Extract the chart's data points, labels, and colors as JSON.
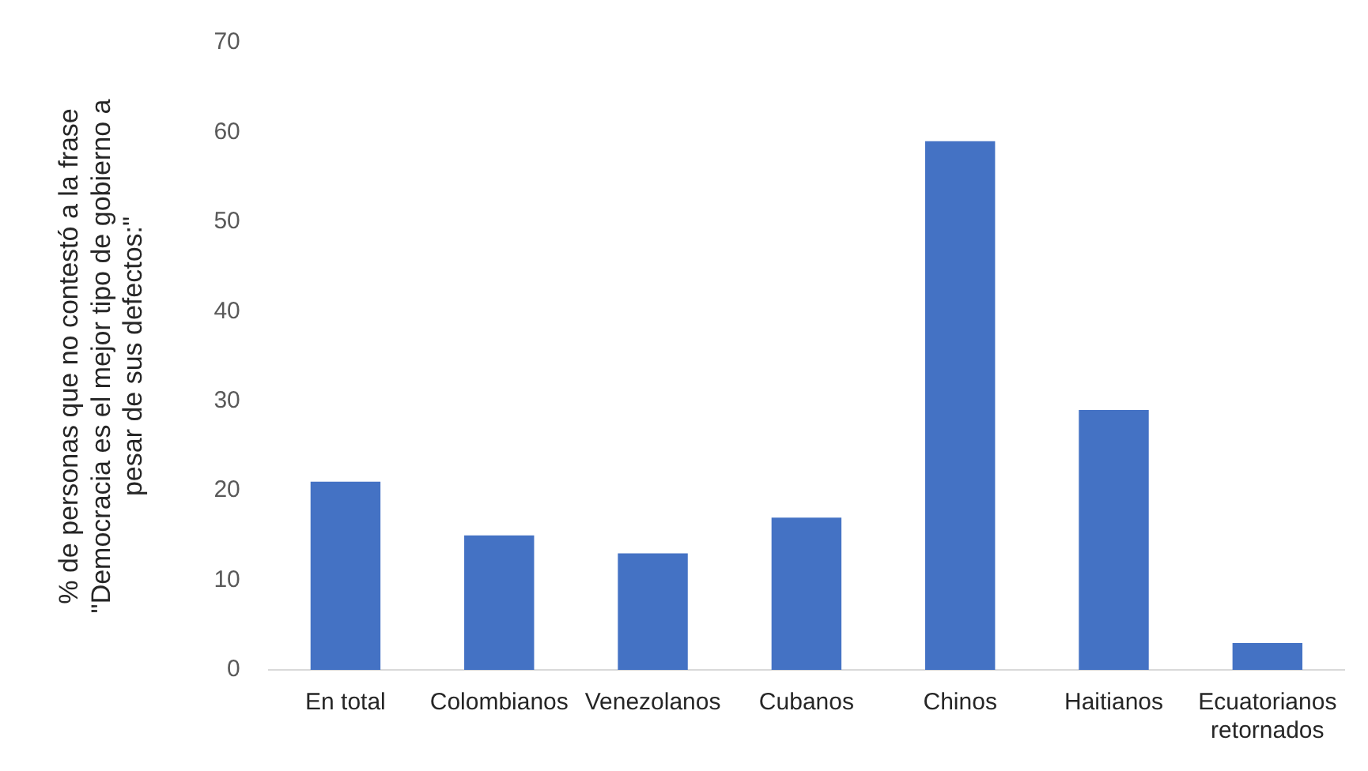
{
  "chart_data": {
    "type": "bar",
    "ylabel": "% de personas que no contestó a la frase \"Democracia es el mejor tipo de gobierno a pesar de sus defectos:\"",
    "categories": [
      "En total",
      "Colombianos",
      "Venezolanos",
      "Cubanos",
      "Chinos",
      "Haitianos",
      "Ecuatorianos retornados"
    ],
    "values": [
      21,
      15,
      13,
      17,
      59,
      29,
      3
    ],
    "color": "#4472c4",
    "ylim": [
      0,
      70
    ],
    "yticks": [
      0,
      10,
      20,
      30,
      40,
      50,
      60,
      70
    ],
    "grid": false,
    "legend": false
  }
}
